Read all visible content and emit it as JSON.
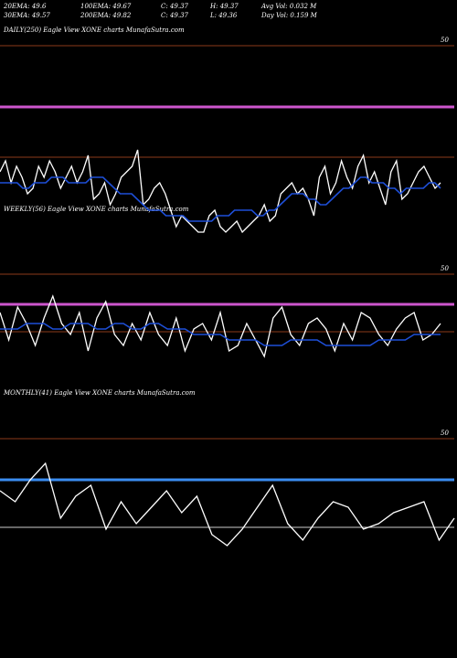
{
  "header": {
    "row1": [
      "20EMA: 49.6",
      "100EMA: 49.67",
      "C: 49.37",
      "H: 49.37",
      "Avg Vol: 0.032  M"
    ],
    "row2": [
      "30EMA: 49.57",
      "200EMA: 49.82",
      "C: 49.37",
      "L: 49.36",
      "Day Vol: 0.159 M"
    ]
  },
  "colors": {
    "price": "#ffffff",
    "ema_short": "#1e4fd8",
    "ema_mid": "#cccccc",
    "ema_long": "#8b3a1a",
    "magenta": "#cc55cc",
    "blue_band": "#3a8cf0"
  },
  "chart_data": [
    {
      "type": "line",
      "title": "DAILY(250) Eagle  View  XONE charts MunafaSutra.com",
      "ytick_label": "50",
      "series": [
        {
          "values": [
            2,
            4,
            0,
            3,
            1,
            -2,
            -1,
            3,
            1,
            4,
            2,
            -1,
            1,
            3,
            0,
            2,
            5,
            -3,
            -2,
            0,
            -4,
            -2,
            1,
            2,
            3,
            6,
            -4,
            -3,
            -1,
            0,
            -2,
            -5,
            -8,
            -6,
            -7,
            -8,
            -9,
            -9,
            -6,
            -5,
            -8,
            -9,
            -8,
            -7,
            -9,
            -8,
            -7,
            -6,
            -4,
            -7,
            -6,
            -2,
            -1,
            0,
            -2,
            -1,
            -3,
            -6,
            1,
            3,
            -2,
            0,
            4,
            1,
            -1,
            3,
            5,
            0,
            2,
            -1,
            -4,
            2,
            4,
            -3,
            -2,
            0,
            2,
            3,
            1,
            -1,
            0
          ]
        },
        {
          "values": [
            0,
            0,
            0,
            0,
            -1,
            -1,
            0,
            0,
            0,
            1,
            1,
            1,
            0,
            0,
            0,
            0,
            1,
            1,
            1,
            0,
            -1,
            -2,
            -2,
            -2,
            -3,
            -4,
            -5,
            -5,
            -5,
            -6,
            -6,
            -6,
            -6,
            -7,
            -7,
            -7,
            -7,
            -7,
            -6,
            -6,
            -6,
            -5,
            -5,
            -5,
            -5,
            -6,
            -6,
            -5,
            -5,
            -4,
            -3,
            -2,
            -2,
            -2,
            -3,
            -3,
            -4,
            -4,
            -3,
            -2,
            -1,
            -1,
            0,
            1,
            1,
            0,
            0,
            0,
            -1,
            -1,
            -2,
            -1,
            -1,
            -1,
            -1,
            0,
            0,
            -1
          ]
        }
      ]
    },
    {
      "type": "line",
      "title": "WEEKLY(56) Eagle  View  XONE charts MunafaSutra.com",
      "ytick_label": "50",
      "series": [
        {
          "values": [
            3,
            -2,
            4,
            1,
            -3,
            2,
            6,
            1,
            -1,
            3,
            -4,
            2,
            5,
            -1,
            -3,
            1,
            -2,
            3,
            -1,
            -3,
            2,
            -4,
            0,
            1,
            -2,
            3,
            -4,
            -3,
            1,
            -2,
            -5,
            2,
            4,
            -1,
            -3,
            1,
            2,
            0,
            -4,
            1,
            -2,
            3,
            2,
            -1,
            -3,
            0,
            2,
            3,
            -2,
            -1,
            1
          ]
        },
        {
          "values": [
            0,
            0,
            0,
            1,
            1,
            1,
            0,
            0,
            1,
            1,
            1,
            0,
            0,
            1,
            1,
            0,
            0,
            1,
            1,
            0,
            0,
            0,
            -1,
            -1,
            -1,
            -1,
            -2,
            -2,
            -2,
            -2,
            -3,
            -3,
            -3,
            -2,
            -2,
            -2,
            -2,
            -3,
            -3,
            -3,
            -3,
            -3,
            -3,
            -2,
            -2,
            -2,
            -2,
            -1,
            -1,
            -1,
            -1
          ]
        }
      ]
    },
    {
      "type": "line",
      "title": "MONTHLY(41) Eagle  View  XONE charts MunafaSutra.com",
      "ytick_label": "50",
      "series": [
        {
          "values": [
            3,
            1,
            5,
            8,
            -2,
            2,
            4,
            -4,
            1,
            -3,
            0,
            3,
            -1,
            2,
            -5,
            -7,
            -4,
            0,
            4,
            -3,
            -6,
            -2,
            1,
            0,
            -4,
            -3,
            -1,
            0,
            1,
            -6,
            -2
          ]
        }
      ]
    }
  ]
}
